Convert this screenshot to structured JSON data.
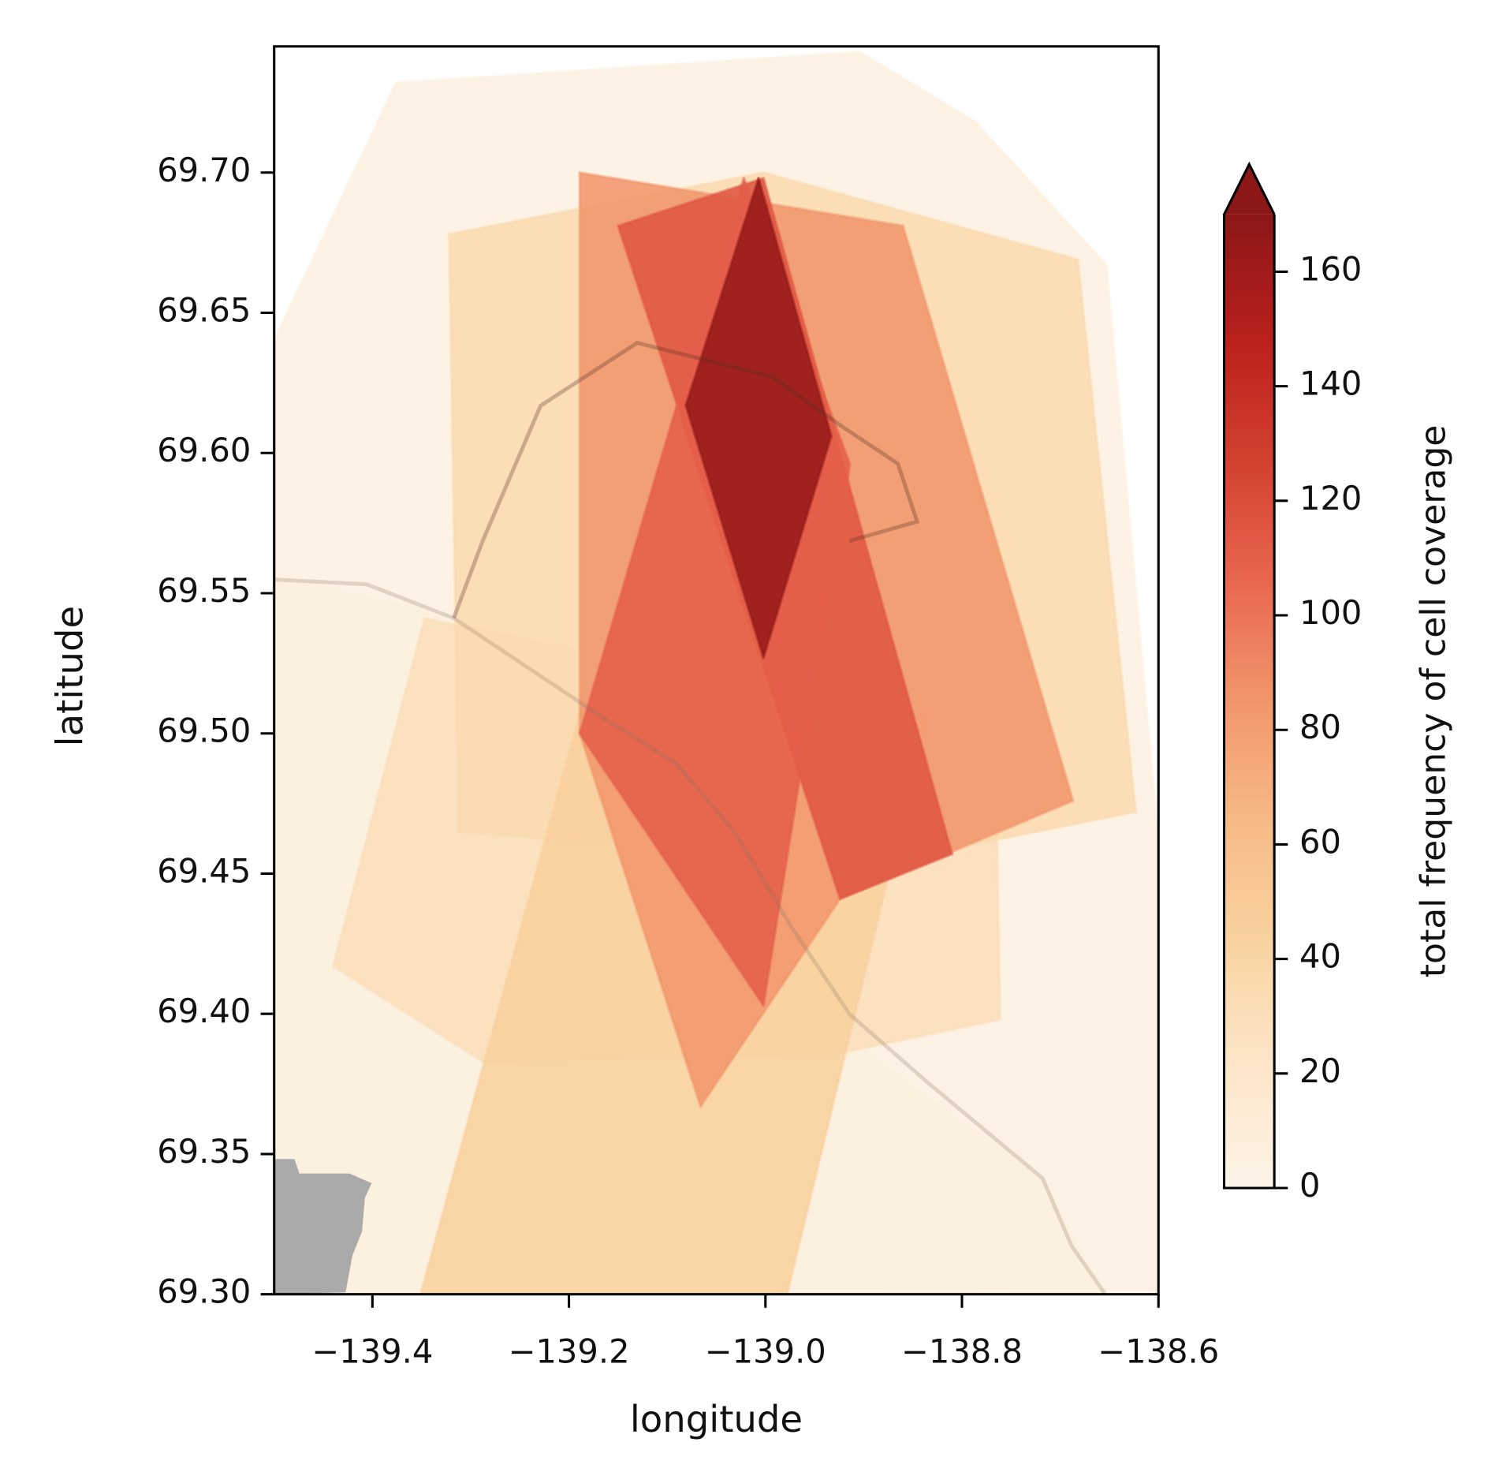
{
  "chart_data": {
    "type": "map",
    "xlabel": "longitude",
    "ylabel": "latitude",
    "xlim": [
      -139.5,
      -138.6
    ],
    "ylim": [
      69.3,
      69.745
    ],
    "xticks": [
      {
        "value": -139.4,
        "label": "−139.4"
      },
      {
        "value": -139.2,
        "label": "−139.2"
      },
      {
        "value": -139.0,
        "label": "−139.0"
      },
      {
        "value": -138.8,
        "label": "−138.8"
      },
      {
        "value": -138.6,
        "label": "−138.6"
      }
    ],
    "yticks": [
      {
        "value": 69.3,
        "label": "69.30"
      },
      69.35,
      {
        "value": 69.4,
        "label": "69.40"
      },
      69.45,
      {
        "value": 69.5,
        "label": "69.50"
      },
      69.55,
      {
        "value": 69.6,
        "label": "69.60"
      },
      69.65,
      {
        "value": 69.7,
        "label": "69.70"
      }
    ],
    "colorbar_label": "total frequency of cell coverage",
    "colorbar_lim": [
      0,
      170
    ],
    "colorbar_ticks": [
      0,
      20,
      40,
      60,
      80,
      100,
      120,
      140,
      160
    ],
    "colorbar_extend": "max",
    "colormap": [
      "#fdf4e8",
      "#fde6c9",
      "#f9d3a1",
      "#f6ba86",
      "#f1966c",
      "#e8664f",
      "#d3402f",
      "#b8201c",
      "#8b1717"
    ],
    "opacity": 0.88,
    "regions": [
      {
        "value": 6,
        "lon": [
          -139.499,
          -139.376,
          -138.904,
          -138.786,
          -138.653,
          -138.6,
          -138.6,
          -139.499
        ],
        "lat": [
          69.641,
          69.732,
          69.743,
          69.718,
          69.667,
          69.462,
          69.301,
          69.3
        ]
      },
      {
        "value": 30,
        "lon": [
          -139.44,
          -139.347,
          -138.766,
          -138.761,
          -138.924,
          -139.288
        ],
        "lat": [
          69.417,
          69.541,
          69.5,
          69.398,
          69.386,
          69.383
        ]
      },
      {
        "value": 35,
        "lon": [
          -139.322,
          -139.002,
          -138.682,
          -138.623,
          -138.894,
          -139.312
        ],
        "lat": [
          69.678,
          69.7,
          69.669,
          69.472,
          69.453,
          69.465
        ]
      },
      {
        "value": 45,
        "lon": [
          -139.351,
          -138.978,
          -138.835,
          -139.189
        ],
        "lat": [
          69.3,
          69.3,
          69.507,
          69.507
        ]
      },
      {
        "value": 85,
        "lon": [
          -139.189,
          -138.86,
          -138.687,
          -138.924,
          -139.066,
          -139.189
        ],
        "lat": [
          69.7,
          69.681,
          69.476,
          69.441,
          69.367,
          69.5
        ]
      },
      {
        "value": 115,
        "lon": [
          -139.15,
          -139.002,
          -138.81,
          -138.924
        ],
        "lat": [
          69.681,
          69.698,
          69.457,
          69.441
        ]
      },
      {
        "value": 110,
        "lon": [
          -139.022,
          -138.914,
          -139.002,
          -139.189
        ],
        "lat": [
          69.698,
          69.596,
          69.403,
          69.5
        ]
      },
      {
        "value": 165,
        "lon": [
          -139.007,
          -138.933,
          -139.002,
          -139.081
        ],
        "lat": [
          69.698,
          69.606,
          69.527,
          69.617
        ]
      }
    ]
  }
}
